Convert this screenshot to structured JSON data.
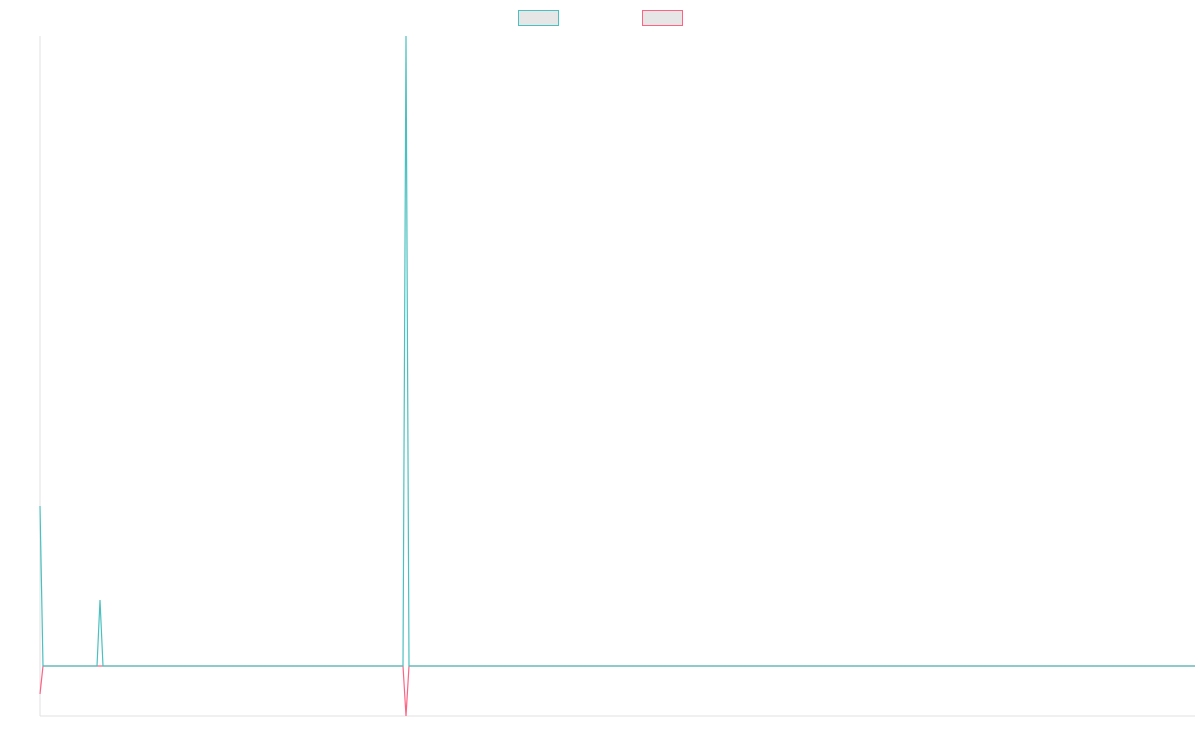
{
  "chart_data": {
    "type": "line",
    "x": [
      0,
      1,
      19,
      20,
      21,
      121,
      122,
      123,
      385
    ],
    "xlim": [
      0,
      385
    ],
    "ylim": [
      -1,
      12.6
    ],
    "grid": false,
    "legend": "top",
    "series": [
      {
        "color": "#ff6384",
        "values": [
          -0.56,
          0,
          0,
          0,
          0,
          0,
          -1,
          0,
          0
        ]
      },
      {
        "color": "#4bc0c0",
        "values": [
          3.2,
          0,
          0,
          1.32,
          0,
          0,
          12.6,
          0,
          0
        ]
      }
    ]
  }
}
